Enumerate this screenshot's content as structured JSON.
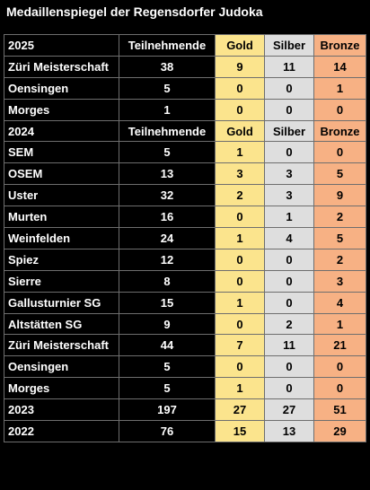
{
  "title": "Medaillenspiegel der Regensdorfer Judoka",
  "colors": {
    "gold": "#fbe48d",
    "silver": "#dedede",
    "bronze": "#f7b184",
    "background": "#000000"
  },
  "rows": [
    {
      "type": "header",
      "name": "2025",
      "participants": "Teilnehmende",
      "gold": "Gold",
      "silver": "Silber",
      "bronze": "Bronze"
    },
    {
      "type": "data",
      "name": "Züri Meisterschaft",
      "participants": "38",
      "gold": "9",
      "silver": "11",
      "bronze": "14"
    },
    {
      "type": "data",
      "name": "Oensingen",
      "participants": "5",
      "gold": "0",
      "silver": "0",
      "bronze": "1"
    },
    {
      "type": "data",
      "name": "Morges",
      "participants": "1",
      "gold": "0",
      "silver": "0",
      "bronze": "0"
    },
    {
      "type": "header",
      "name": "2024",
      "participants": "Teilnehmende",
      "gold": "Gold",
      "silver": "Silber",
      "bronze": "Bronze"
    },
    {
      "type": "data",
      "name": "SEM",
      "participants": "5",
      "gold": "1",
      "silver": "0",
      "bronze": "0"
    },
    {
      "type": "data",
      "name": "OSEM",
      "participants": "13",
      "gold": "3",
      "silver": "3",
      "bronze": "5"
    },
    {
      "type": "data",
      "name": "Uster",
      "participants": "32",
      "gold": "2",
      "silver": "3",
      "bronze": "9"
    },
    {
      "type": "data",
      "name": "Murten",
      "participants": "16",
      "gold": "0",
      "silver": "1",
      "bronze": "2"
    },
    {
      "type": "data",
      "name": "Weinfelden",
      "participants": "24",
      "gold": "1",
      "silver": "4",
      "bronze": "5"
    },
    {
      "type": "data",
      "name": "Spiez",
      "participants": "12",
      "gold": "0",
      "silver": "0",
      "bronze": "2"
    },
    {
      "type": "data",
      "name": "Sierre",
      "participants": "8",
      "gold": "0",
      "silver": "0",
      "bronze": "3"
    },
    {
      "type": "data",
      "name": "Gallusturnier SG",
      "participants": "15",
      "gold": "1",
      "silver": "0",
      "bronze": "4"
    },
    {
      "type": "data",
      "name": "Altstätten SG",
      "participants": "9",
      "gold": "0",
      "silver": "2",
      "bronze": "1"
    },
    {
      "type": "data",
      "name": "Züri Meisterschaft",
      "participants": "44",
      "gold": "7",
      "silver": "11",
      "bronze": "21"
    },
    {
      "type": "data",
      "name": "Oensingen",
      "participants": "5",
      "gold": "0",
      "silver": "0",
      "bronze": "0"
    },
    {
      "type": "data",
      "name": "Morges",
      "participants": "5",
      "gold": "1",
      "silver": "0",
      "bronze": "0"
    },
    {
      "type": "data",
      "name": "2023",
      "participants": "197",
      "gold": "27",
      "silver": "27",
      "bronze": "51"
    },
    {
      "type": "data",
      "name": "2022",
      "participants": "76",
      "gold": "15",
      "silver": "13",
      "bronze": "29"
    }
  ]
}
